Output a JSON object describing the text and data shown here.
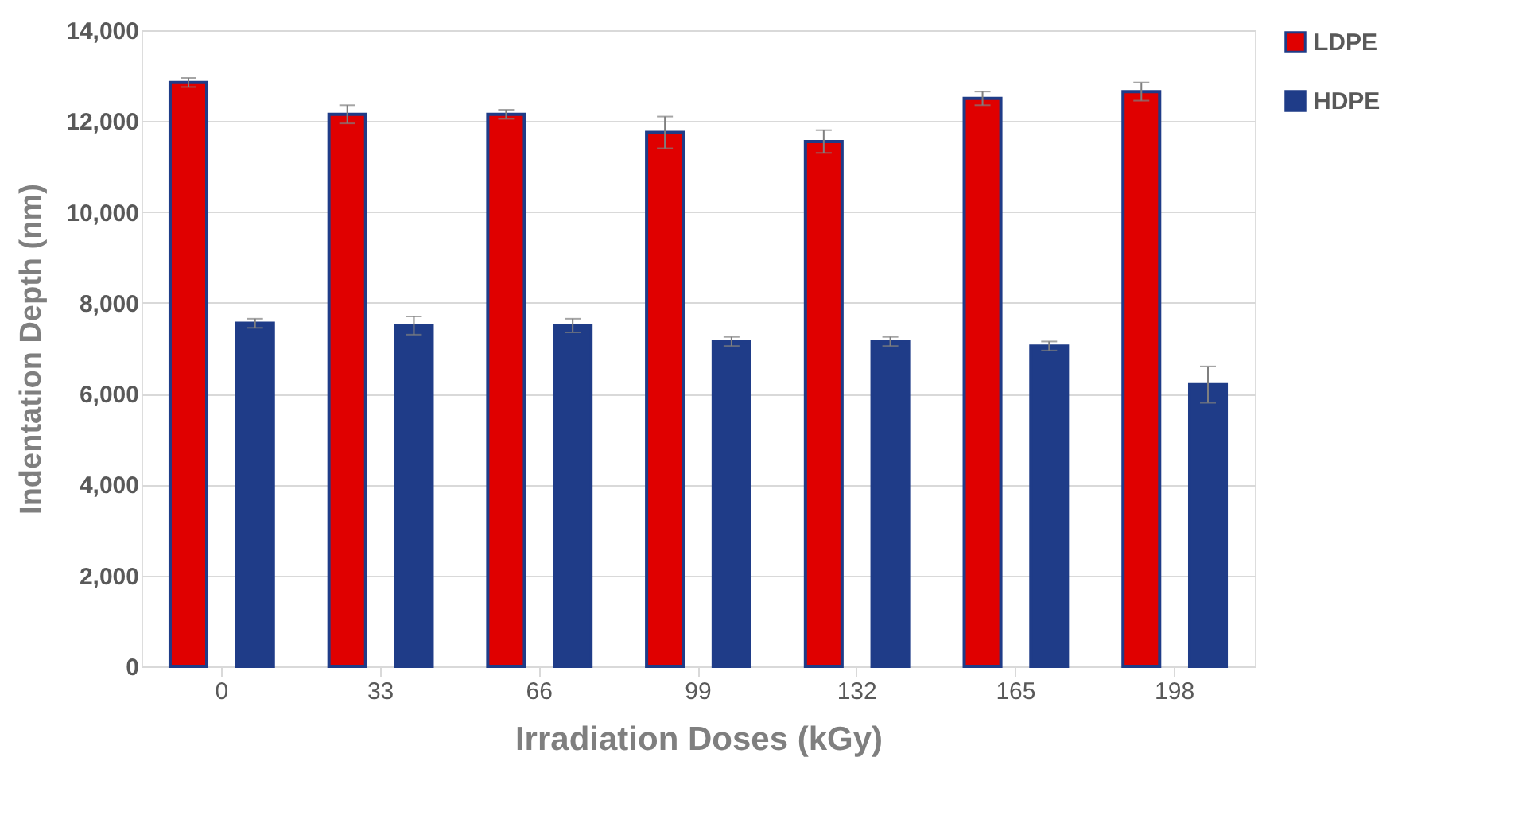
{
  "chart_data": {
    "type": "bar",
    "xlabel": "Irradiation Doses (kGy)",
    "ylabel": "Indentation Depth (nm)",
    "categories": [
      "0",
      "33",
      "66",
      "99",
      "132",
      "165",
      "198"
    ],
    "series": [
      {
        "name": "LDPE",
        "color": "#e00000",
        "values": [
          12850,
          12150,
          12150,
          11750,
          11550,
          12500,
          12650
        ],
        "errors": [
          100,
          200,
          100,
          350,
          250,
          150,
          200
        ]
      },
      {
        "name": "HDPE",
        "color": "#1f3c88",
        "values": [
          7550,
          7500,
          7500,
          7150,
          7150,
          7050,
          6200
        ],
        "errors": [
          100,
          200,
          150,
          100,
          100,
          100,
          400
        ]
      }
    ],
    "ylim": [
      0,
      14000
    ],
    "yticks": [
      0,
      {
        "value": 2000,
        "label": "2,000"
      },
      {
        "value": 4000,
        "label": "4,000"
      },
      {
        "value": 6000,
        "label": "6,000"
      },
      {
        "value": 8000,
        "label": "8,000"
      },
      {
        "value": 10000,
        "label": "10,000"
      },
      {
        "value": 12000,
        "label": "12,000"
      },
      {
        "value": 14000,
        "label": "14,000"
      }
    ],
    "grid": "y",
    "legend": "right"
  }
}
